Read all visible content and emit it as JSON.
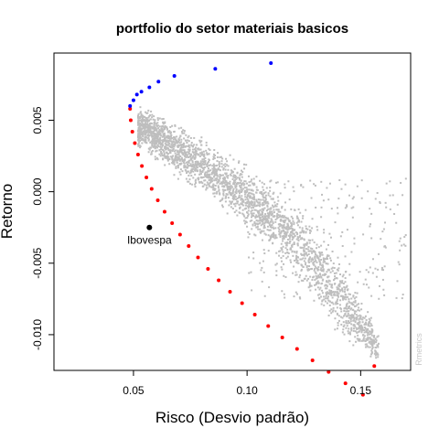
{
  "chart_data": {
    "type": "scatter",
    "title": "portfolio do setor materiais basicos",
    "xlabel": "Risco (Desvio padrão)",
    "ylabel": "Retorno",
    "xlim": [
      0.015,
      0.172
    ],
    "ylim": [
      -0.0125,
      0.0097
    ],
    "x_ticks": [
      0.05,
      0.1,
      0.15
    ],
    "x_tick_labels": [
      "0.05",
      "0.10",
      "0.15"
    ],
    "y_ticks": [
      -0.01,
      -0.005,
      0.0,
      0.005
    ],
    "y_tick_labels": [
      "-0.010",
      "-0.005",
      "0.000",
      "0.005"
    ],
    "grid": false,
    "legend": "none",
    "series": [
      {
        "role": "random-portfolios",
        "color": "#bebebe",
        "description_in_chart": "cloud of simulated portfolios",
        "points_approx": 5000,
        "core_band": [
          {
            "x": 0.055,
            "y_min": 0.003,
            "y_max": 0.0058
          },
          {
            "x": 0.07,
            "y_min": 0.001,
            "y_max": 0.0045
          },
          {
            "x": 0.085,
            "y_min": -0.0005,
            "y_max": 0.003
          },
          {
            "x": 0.1,
            "y_min": -0.0025,
            "y_max": 0.0015
          },
          {
            "x": 0.115,
            "y_min": -0.0045,
            "y_max": -0.0005
          },
          {
            "x": 0.13,
            "y_min": -0.0075,
            "y_max": -0.0025
          },
          {
            "x": 0.145,
            "y_min": -0.0105,
            "y_max": -0.006
          },
          {
            "x": 0.158,
            "y_min": -0.012,
            "y_max": -0.01
          }
        ]
      },
      {
        "role": "efficient-frontier",
        "color": "#0000ff",
        "x": [
          0.0485,
          0.05,
          0.0515,
          0.0535,
          0.057,
          0.061,
          0.068,
          0.086,
          0.1105
        ],
        "y": [
          0.006,
          0.0064,
          0.0068,
          0.007,
          0.0073,
          0.0077,
          0.0081,
          0.0086,
          0.009
        ]
      },
      {
        "role": "inefficient-frontier",
        "color": "#ff0000",
        "x": [
          0.0485,
          0.0488,
          0.0495,
          0.0506,
          0.052,
          0.0537,
          0.0557,
          0.058,
          0.0607,
          0.0637,
          0.067,
          0.0705,
          0.0743,
          0.0784,
          0.0828,
          0.0875,
          0.0925,
          0.0978,
          0.1034,
          0.1093,
          0.1155,
          0.122,
          0.1288,
          0.1359,
          0.1433,
          0.151,
          0.156
        ],
        "y": [
          0.0058,
          0.005,
          0.0042,
          0.0034,
          0.0026,
          0.0018,
          0.001,
          0.0002,
          -0.0006,
          -0.0014,
          -0.0022,
          -0.003,
          -0.0038,
          -0.0046,
          -0.0054,
          -0.0062,
          -0.007,
          -0.0078,
          -0.0086,
          -0.0094,
          -0.0102,
          -0.011,
          -0.0118,
          -0.0126,
          -0.0134,
          -0.0142,
          -0.0122
        ]
      }
    ],
    "annotations": [
      {
        "label": "Ibovespa",
        "x": 0.057,
        "y": -0.0025,
        "color": "#000000"
      }
    ],
    "watermark": "Rmetrics"
  }
}
